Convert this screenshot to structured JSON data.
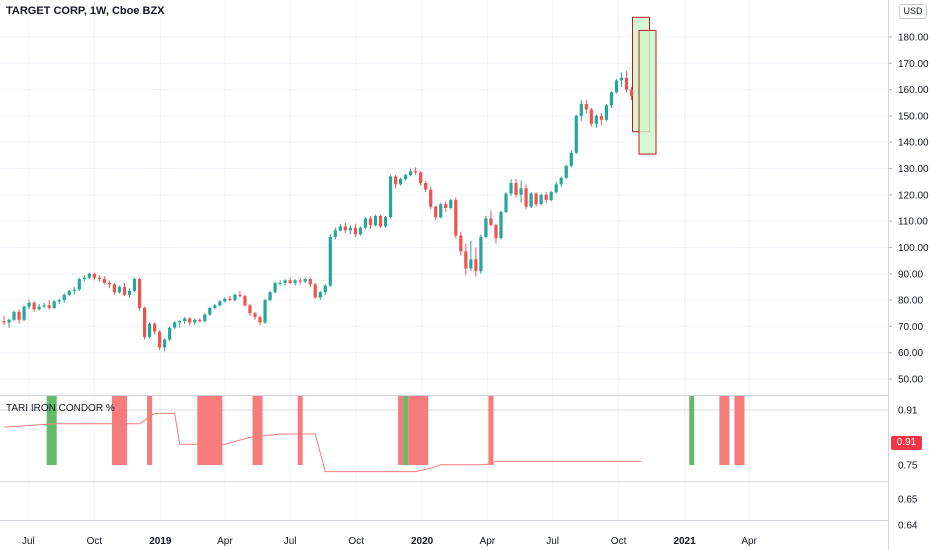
{
  "header": {
    "title": "TARGET CORP, 1W, Cboe BZX",
    "currency": "USD"
  },
  "colors": {
    "up": "#26a69a",
    "down": "#ef5350",
    "box_fill": "#ccf5c8",
    "box_border": "#c2181f",
    "bar_red": "#f77c7c",
    "bar_green": "#66bb6a",
    "line": "#f77c7c",
    "badge": "#f23645"
  },
  "chart_data": [
    {
      "type": "candlestick",
      "title": "TARGET CORP, 1W, Cboe BZX",
      "x_axis": {
        "type": "date",
        "ticks": [
          "Jul",
          "Oct",
          "2019",
          "Apr",
          "Jul",
          "Oct",
          "2020",
          "Apr",
          "Jul",
          "Oct",
          "2021",
          "Apr"
        ],
        "tick_dates": [
          "2018-07-01",
          "2018-10-01",
          "2019-01-01",
          "2019-04-01",
          "2019-07-01",
          "2019-10-01",
          "2020-01-01",
          "2020-04-01",
          "2020-07-01",
          "2020-10-01",
          "2021-01-01",
          "2021-04-01"
        ]
      },
      "y_axis": {
        "ticks": [
          "180.00",
          "170.00",
          "160.00",
          "150.00",
          "140.00",
          "130.00",
          "120.00",
          "110.00",
          "100.00",
          "90.00",
          "80.00",
          "70.00",
          "60.00",
          "50.00"
        ],
        "range": [
          47,
          190
        ]
      },
      "ohlc": [
        [
          72.0,
          74.0,
          70.5,
          71.5
        ],
        [
          71.5,
          73.0,
          69.5,
          72.5
        ],
        [
          72.5,
          76.0,
          72.0,
          75.5
        ],
        [
          75.5,
          76.5,
          71.0,
          72.5
        ],
        [
          72.5,
          78.0,
          72.0,
          77.5
        ],
        [
          77.5,
          80.0,
          76.5,
          79.0
        ],
        [
          79.0,
          79.5,
          75.5,
          76.5
        ],
        [
          76.5,
          78.5,
          76.0,
          77.5
        ],
        [
          77.5,
          79.0,
          77.0,
          78.0
        ],
        [
          78.0,
          80.0,
          76.5,
          77.0
        ],
        [
          77.0,
          80.0,
          76.5,
          79.5
        ],
        [
          79.5,
          80.5,
          78.5,
          80.0
        ],
        [
          80.0,
          82.5,
          79.0,
          82.0
        ],
        [
          82.0,
          84.0,
          81.5,
          83.5
        ],
        [
          83.5,
          85.0,
          82.0,
          84.0
        ],
        [
          84.0,
          88.5,
          83.5,
          88.0
        ],
        [
          88.0,
          89.5,
          87.0,
          88.5
        ],
        [
          88.5,
          90.5,
          88.0,
          90.0
        ],
        [
          90.0,
          90.5,
          87.5,
          88.5
        ],
        [
          88.5,
          89.5,
          87.0,
          88.0
        ],
        [
          88.0,
          89.0,
          86.0,
          86.5
        ],
        [
          86.5,
          87.5,
          84.5,
          86.0
        ],
        [
          86.0,
          86.5,
          82.0,
          83.0
        ],
        [
          83.0,
          85.5,
          82.5,
          85.0
        ],
        [
          85.0,
          86.5,
          81.5,
          82.0
        ],
        [
          82.0,
          84.5,
          81.0,
          83.5
        ],
        [
          83.5,
          88.5,
          83.0,
          88.0
        ],
        [
          88.0,
          88.5,
          76.0,
          77.0
        ],
        [
          77.0,
          77.5,
          65.0,
          66.0
        ],
        [
          66.0,
          71.5,
          65.5,
          71.0
        ],
        [
          71.0,
          71.5,
          67.0,
          68.0
        ],
        [
          68.0,
          68.5,
          61.0,
          62.0
        ],
        [
          62.0,
          65.5,
          60.5,
          65.0
        ],
        [
          65.0,
          70.0,
          64.5,
          69.5
        ],
        [
          69.5,
          72.0,
          69.0,
          71.5
        ],
        [
          71.5,
          72.5,
          69.5,
          72.0
        ],
        [
          72.0,
          73.5,
          71.0,
          73.0
        ],
        [
          73.0,
          73.5,
          70.5,
          71.5
        ],
        [
          71.5,
          73.0,
          70.5,
          72.5
        ],
        [
          72.5,
          73.0,
          71.5,
          72.0
        ],
        [
          72.0,
          75.0,
          71.5,
          74.5
        ],
        [
          74.5,
          77.5,
          74.0,
          77.0
        ],
        [
          77.0,
          78.5,
          76.5,
          78.0
        ],
        [
          78.0,
          80.0,
          77.5,
          79.5
        ],
        [
          79.5,
          81.0,
          79.0,
          80.5
        ],
        [
          80.5,
          81.5,
          79.5,
          80.0
        ],
        [
          80.0,
          82.5,
          79.5,
          82.0
        ],
        [
          82.0,
          83.5,
          81.0,
          81.5
        ],
        [
          81.5,
          82.0,
          77.5,
          78.0
        ],
        [
          78.0,
          78.5,
          74.0,
          75.0
        ],
        [
          75.0,
          75.5,
          72.5,
          73.5
        ],
        [
          73.5,
          74.0,
          70.5,
          71.5
        ],
        [
          71.5,
          80.5,
          71.0,
          80.0
        ],
        [
          80.0,
          83.5,
          79.5,
          83.0
        ],
        [
          83.0,
          87.0,
          82.5,
          86.5
        ],
        [
          86.5,
          87.5,
          85.5,
          86.5
        ],
        [
          86.5,
          88.0,
          85.5,
          87.5
        ],
        [
          87.5,
          88.5,
          86.0,
          86.5
        ],
        [
          86.5,
          88.0,
          85.5,
          87.5
        ],
        [
          87.5,
          88.5,
          86.0,
          87.0
        ],
        [
          87.0,
          88.5,
          86.5,
          88.0
        ],
        [
          88.0,
          88.5,
          85.0,
          86.0
        ],
        [
          86.0,
          86.5,
          80.5,
          81.0
        ],
        [
          81.0,
          83.5,
          80.0,
          83.0
        ],
        [
          83.0,
          86.0,
          82.0,
          85.5
        ],
        [
          85.5,
          105.0,
          85.0,
          104.0
        ],
        [
          104.0,
          107.5,
          103.0,
          106.5
        ],
        [
          106.5,
          109.0,
          106.0,
          108.0
        ],
        [
          108.0,
          109.5,
          105.5,
          106.5
        ],
        [
          106.5,
          108.5,
          105.0,
          107.5
        ],
        [
          107.5,
          109.0,
          104.0,
          105.0
        ],
        [
          105.0,
          108.0,
          104.5,
          107.5
        ],
        [
          107.5,
          111.5,
          107.0,
          111.0
        ],
        [
          111.0,
          112.0,
          107.0,
          108.5
        ],
        [
          108.5,
          112.5,
          108.0,
          112.0
        ],
        [
          112.0,
          112.5,
          107.5,
          108.0
        ],
        [
          108.0,
          112.0,
          107.5,
          111.5
        ],
        [
          111.5,
          127.5,
          111.0,
          127.0
        ],
        [
          127.0,
          127.5,
          122.5,
          124.0
        ],
        [
          124.0,
          126.5,
          123.5,
          126.0
        ],
        [
          126.0,
          128.0,
          125.5,
          127.5
        ],
        [
          127.5,
          130.0,
          127.0,
          129.0
        ],
        [
          129.0,
          130.5,
          127.5,
          128.5
        ],
        [
          128.5,
          129.0,
          123.5,
          124.5
        ],
        [
          124.5,
          125.5,
          121.0,
          122.0
        ],
        [
          122.0,
          123.0,
          114.5,
          115.5
        ],
        [
          115.5,
          116.0,
          110.5,
          111.5
        ],
        [
          111.5,
          117.0,
          111.0,
          116.5
        ],
        [
          116.5,
          117.5,
          113.5,
          115.0
        ],
        [
          115.0,
          118.5,
          114.5,
          118.0
        ],
        [
          118.0,
          119.0,
          103.5,
          104.5
        ],
        [
          104.5,
          106.0,
          97.0,
          98.5
        ],
        [
          98.5,
          101.5,
          89.5,
          92.0
        ],
        [
          92.0,
          102.5,
          91.0,
          95.5
        ],
        [
          95.5,
          100.0,
          89.0,
          91.0
        ],
        [
          91.0,
          105.0,
          90.0,
          104.0
        ],
        [
          104.0,
          112.0,
          103.5,
          111.0
        ],
        [
          111.0,
          114.0,
          108.0,
          108.5
        ],
        [
          108.5,
          109.0,
          101.5,
          103.5
        ],
        [
          103.5,
          114.0,
          103.0,
          113.5
        ],
        [
          113.5,
          121.0,
          113.0,
          120.5
        ],
        [
          120.5,
          126.0,
          119.5,
          124.5
        ],
        [
          124.5,
          126.0,
          119.0,
          120.0
        ],
        [
          120.0,
          125.5,
          117.0,
          122.5
        ],
        [
          122.5,
          124.0,
          114.5,
          115.5
        ],
        [
          115.5,
          121.0,
          115.0,
          120.5
        ],
        [
          120.5,
          121.0,
          115.5,
          116.5
        ],
        [
          116.5,
          120.5,
          116.0,
          120.0
        ],
        [
          120.0,
          121.0,
          117.0,
          118.0
        ],
        [
          118.0,
          121.5,
          117.5,
          121.0
        ],
        [
          121.0,
          125.0,
          120.5,
          124.0
        ],
        [
          124.0,
          127.0,
          123.0,
          126.5
        ],
        [
          126.5,
          131.5,
          126.0,
          131.0
        ],
        [
          131.0,
          137.0,
          130.5,
          136.0
        ],
        [
          136.0,
          150.5,
          135.5,
          150.0
        ],
        [
          150.0,
          156.0,
          148.0,
          154.5
        ],
        [
          154.5,
          156.0,
          151.0,
          152.5
        ],
        [
          152.5,
          153.0,
          146.0,
          147.0
        ],
        [
          147.0,
          150.5,
          145.5,
          150.0
        ],
        [
          150.0,
          151.0,
          146.5,
          148.5
        ],
        [
          148.5,
          154.5,
          148.0,
          154.0
        ],
        [
          154.0,
          159.5,
          153.0,
          159.0
        ],
        [
          159.0,
          164.0,
          158.5,
          163.5
        ],
        [
          163.5,
          166.5,
          161.0,
          164.5
        ],
        [
          164.5,
          167.0,
          159.0,
          160.0
        ],
        [
          160.0,
          161.0,
          156.0,
          157.5
        ]
      ],
      "boxes": [
        {
          "y_top": 187.5,
          "y_bottom": 144.0,
          "fill": "#ccf5c8",
          "border": "#c2181f"
        },
        {
          "y_top": 182.5,
          "y_bottom": 135.5,
          "fill": "#ccf5c8",
          "border": "#c2181f"
        }
      ]
    },
    {
      "type": "bar+line",
      "title": "TARI IRON CONDOR %",
      "y_axis": {
        "ticks": [
          "0.91",
          "0.75",
          "0.65",
          "0.64"
        ]
      },
      "last_value": "0.91",
      "line": [
        [
          0,
          0.86
        ],
        [
          10,
          0.87
        ],
        [
          27,
          0.87
        ],
        [
          30,
          0.9
        ],
        [
          34,
          0.9
        ],
        [
          35,
          0.81
        ],
        [
          44,
          0.81
        ],
        [
          49,
          0.83
        ],
        [
          55,
          0.84
        ],
        [
          62,
          0.84
        ],
        [
          64,
          0.73
        ],
        [
          82,
          0.73
        ],
        [
          85,
          0.74
        ],
        [
          87,
          0.75
        ],
        [
          96,
          0.75
        ],
        [
          98,
          0.76
        ],
        [
          127,
          0.76
        ]
      ],
      "bars": [
        {
          "from": 9,
          "to": 10,
          "color": "green"
        },
        {
          "from": 22,
          "to": 24,
          "color": "red"
        },
        {
          "from": 29,
          "to": 29,
          "color": "red"
        },
        {
          "from": 39,
          "to": 43,
          "color": "red"
        },
        {
          "from": 50,
          "to": 51,
          "color": "red"
        },
        {
          "from": 59,
          "to": 59,
          "color": "red"
        },
        {
          "from": 79,
          "to": 79,
          "color": "red"
        },
        {
          "from": 80,
          "to": 80,
          "color": "green"
        },
        {
          "from": 81,
          "to": 84,
          "color": "red"
        },
        {
          "from": 97,
          "to": 97,
          "color": "red"
        },
        {
          "from": 137,
          "to": 137,
          "color": "green"
        },
        {
          "from": 143,
          "to": 144,
          "color": "red"
        },
        {
          "from": 146,
          "to": 147,
          "color": "red"
        }
      ]
    }
  ]
}
